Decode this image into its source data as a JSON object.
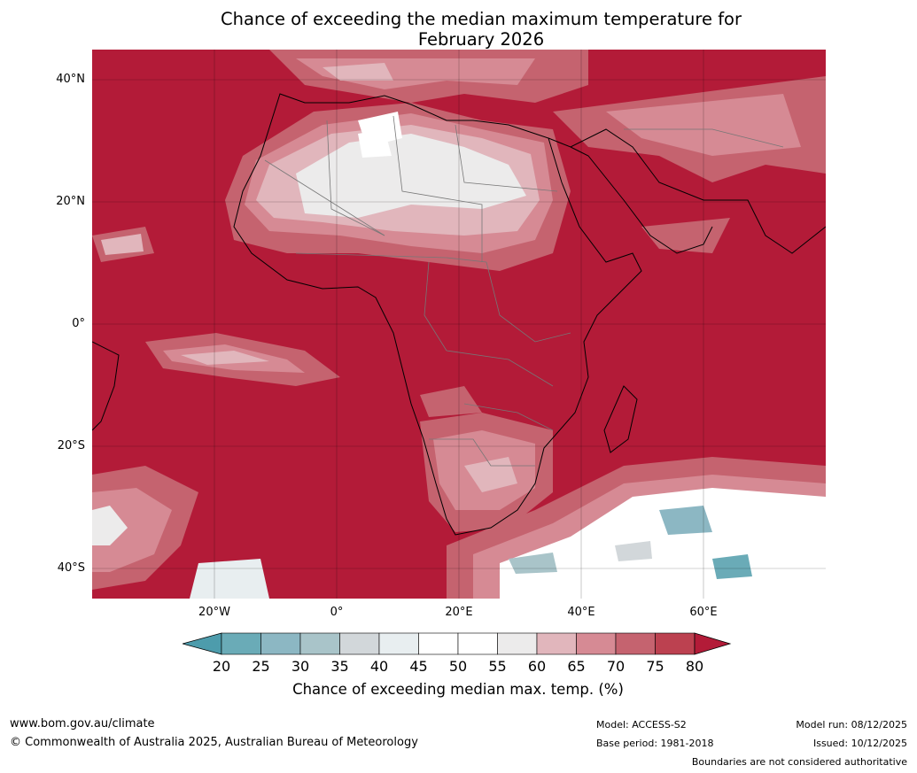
{
  "title": {
    "line1": "Chance of exceeding the median maximum temperature for",
    "line2": "February 2026"
  },
  "axes": {
    "lat_labels": [
      "40°N",
      "20°N",
      "0°",
      "20°S",
      "40°S"
    ],
    "lon_labels": [
      "20°W",
      "0°",
      "20°E",
      "40°E",
      "60°E"
    ]
  },
  "map": {
    "region": "Africa and surrounding oceans",
    "extent_data": {
      "lon": [
        -40,
        80
      ],
      "lat": [
        -45,
        45
      ]
    },
    "dominant_color": "#b31b38"
  },
  "colorbar": {
    "ticks": [
      "20",
      "25",
      "30",
      "35",
      "40",
      "45",
      "50",
      "55",
      "60",
      "65",
      "70",
      "75",
      "80"
    ],
    "colors": [
      "#4d9cac",
      "#6aabb7",
      "#8cb7c3",
      "#a9c4c9",
      "#d2d7da",
      "#e8eef0",
      "#ffffff",
      "#ffffff",
      "#ecebeb",
      "#e1b6bc",
      "#d68a94",
      "#c5636f",
      "#bc4150",
      "#b31b38"
    ],
    "label": "Chance of exceeding median max. temp. (%)"
  },
  "footer": {
    "url": "www.bom.gov.au/climate",
    "copyright": "© Commonwealth of Australia 2025, Australian Bureau of Meteorology",
    "model": "Model: ACCESS-S2",
    "base_period": "Base period: 1981-2018",
    "model_run": "Model run: 08/12/2025",
    "issued": "Issued: 10/12/2025",
    "disclaimer": "Boundaries are not considered authoritative"
  }
}
